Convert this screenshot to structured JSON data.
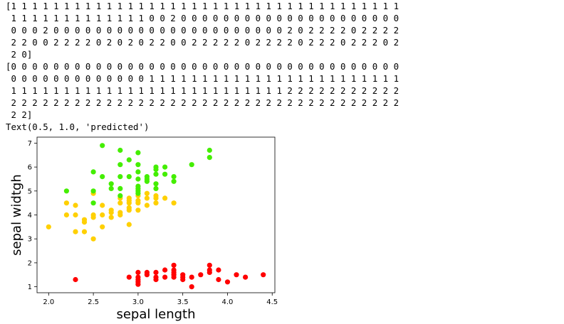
{
  "output_lines": [
    "[1 1 1 1 1 1 1 1 1 1 1 1 1 1 1 1 1 1 1 1 1 1 1 1 1 1 1 1 1 1 1 1 1 1 1 1 1",
    " 1 1 1 1 1 1 1 1 1 1 1 1 1 0 0 2 0 0 0 0 0 0 0 0 0 0 0 0 0 0 0 0 0 0 0 0 0",
    " 0 0 0 2 0 0 0 0 0 0 0 0 0 0 0 0 0 0 0 0 0 0 0 0 0 0 2 0 2 2 2 2 0 2 2 2 2",
    " 2 2 0 0 2 2 2 2 0 2 0 2 0 2 2 0 0 2 2 2 2 2 0 2 2 2 2 0 2 2 2 0 2 2 2 0 2",
    " 2 0]",
    "[0 0 0 0 0 0 0 0 0 0 0 0 0 0 0 0 0 0 0 0 0 0 0 0 0 0 0 0 0 0 0 0 0 0 0 0 0",
    " 0 0 0 0 0 0 0 0 0 0 0 0 0 1 1 1 1 1 1 1 1 1 1 1 1 1 1 1 1 1 1 1 1 1 1 1 1",
    " 1 1 1 1 1 1 1 1 1 1 1 1 1 1 1 1 1 1 1 1 1 1 1 1 1 1 2 2 2 2 2 2 2 2 2 2 2",
    " 2 2 2 2 2 2 2 2 2 2 2 2 2 2 2 2 2 2 2 2 2 2 2 2 2 2 2 2 2 2 2 2 2 2 2 2 2",
    " 2 2]",
    "Text(0.5, 1.0, 'predicted')"
  ],
  "chart_data": {
    "type": "scatter",
    "xlabel": "sepal length",
    "ylabel": "sepal widtgh",
    "xlim": [
      1.87,
      4.53
    ],
    "ylim": [
      0.75,
      7.25
    ],
    "xticks": [
      "2.0",
      "2.5",
      "3.0",
      "3.5",
      "4.0",
      "4.5"
    ],
    "xtick_values": [
      2.0,
      2.5,
      3.0,
      3.5,
      4.0,
      4.5
    ],
    "yticks": [
      "1",
      "2",
      "3",
      "4",
      "5",
      "6",
      "7"
    ],
    "ytick_values": [
      1,
      2,
      3,
      4,
      5,
      6,
      7
    ],
    "grid": false,
    "series": [
      {
        "color": "#ff0000",
        "points": [
          [
            2.3,
            1.3
          ],
          [
            2.9,
            1.4
          ],
          [
            3.0,
            1.1
          ],
          [
            3.0,
            1.2
          ],
          [
            3.0,
            1.3
          ],
          [
            3.0,
            1.4
          ],
          [
            3.0,
            1.6
          ],
          [
            3.1,
            1.5
          ],
          [
            3.1,
            1.6
          ],
          [
            3.2,
            1.3
          ],
          [
            3.2,
            1.4
          ],
          [
            3.2,
            1.6
          ],
          [
            3.3,
            1.4
          ],
          [
            3.3,
            1.7
          ],
          [
            3.4,
            1.4
          ],
          [
            3.4,
            1.5
          ],
          [
            3.4,
            1.6
          ],
          [
            3.4,
            1.7
          ],
          [
            3.4,
            1.9
          ],
          [
            3.5,
            1.3
          ],
          [
            3.5,
            1.4
          ],
          [
            3.5,
            1.5
          ],
          [
            3.6,
            1.0
          ],
          [
            3.6,
            1.4
          ],
          [
            3.7,
            1.5
          ],
          [
            3.8,
            1.6
          ],
          [
            3.8,
            1.7
          ],
          [
            3.8,
            1.9
          ],
          [
            3.9,
            1.3
          ],
          [
            3.9,
            1.7
          ],
          [
            4.0,
            1.2
          ],
          [
            4.1,
            1.5
          ],
          [
            4.2,
            1.4
          ],
          [
            4.4,
            1.5
          ]
        ]
      },
      {
        "color": "#ffd000",
        "points": [
          [
            2.0,
            3.5
          ],
          [
            2.2,
            4.0
          ],
          [
            2.2,
            4.5
          ],
          [
            2.3,
            3.3
          ],
          [
            2.3,
            4.0
          ],
          [
            2.3,
            4.4
          ],
          [
            2.4,
            3.3
          ],
          [
            2.4,
            3.7
          ],
          [
            2.4,
            3.8
          ],
          [
            2.5,
            3.0
          ],
          [
            2.5,
            3.9
          ],
          [
            2.5,
            4.0
          ],
          [
            2.5,
            4.9
          ],
          [
            2.6,
            3.5
          ],
          [
            2.6,
            4.0
          ],
          [
            2.6,
            4.4
          ],
          [
            2.7,
            3.9
          ],
          [
            2.7,
            4.1
          ],
          [
            2.7,
            4.2
          ],
          [
            2.8,
            4.0
          ],
          [
            2.8,
            4.1
          ],
          [
            2.8,
            4.5
          ],
          [
            2.8,
            4.7
          ],
          [
            2.9,
            3.6
          ],
          [
            2.9,
            4.2
          ],
          [
            2.9,
            4.3
          ],
          [
            2.9,
            4.5
          ],
          [
            2.9,
            4.6
          ],
          [
            2.9,
            4.7
          ],
          [
            3.0,
            4.2
          ],
          [
            3.0,
            4.5
          ],
          [
            3.0,
            4.6
          ],
          [
            3.0,
            4.8
          ],
          [
            3.1,
            4.4
          ],
          [
            3.1,
            4.7
          ],
          [
            3.1,
            4.9
          ],
          [
            3.2,
            4.5
          ],
          [
            3.2,
            4.7
          ],
          [
            3.2,
            4.8
          ],
          [
            3.3,
            4.7
          ],
          [
            3.4,
            4.5
          ]
        ]
      },
      {
        "color": "#44ee00",
        "points": [
          [
            2.2,
            5.0
          ],
          [
            2.5,
            4.5
          ],
          [
            2.5,
            5.0
          ],
          [
            2.5,
            5.8
          ],
          [
            2.6,
            5.6
          ],
          [
            2.6,
            6.9
          ],
          [
            2.7,
            5.1
          ],
          [
            2.7,
            5.3
          ],
          [
            2.8,
            4.8
          ],
          [
            2.8,
            5.1
          ],
          [
            2.8,
            5.6
          ],
          [
            2.8,
            6.1
          ],
          [
            2.8,
            6.7
          ],
          [
            2.9,
            5.6
          ],
          [
            2.9,
            6.3
          ],
          [
            3.0,
            4.9
          ],
          [
            3.0,
            5.0
          ],
          [
            3.0,
            5.1
          ],
          [
            3.0,
            5.2
          ],
          [
            3.0,
            5.5
          ],
          [
            3.0,
            5.8
          ],
          [
            3.0,
            6.1
          ],
          [
            3.0,
            6.6
          ],
          [
            3.1,
            5.4
          ],
          [
            3.1,
            5.5
          ],
          [
            3.1,
            5.6
          ],
          [
            3.2,
            5.1
          ],
          [
            3.2,
            5.3
          ],
          [
            3.2,
            5.7
          ],
          [
            3.2,
            5.9
          ],
          [
            3.2,
            6.0
          ],
          [
            3.3,
            5.7
          ],
          [
            3.3,
            6.0
          ],
          [
            3.4,
            5.4
          ],
          [
            3.4,
            5.6
          ],
          [
            3.6,
            6.1
          ],
          [
            3.8,
            6.4
          ],
          [
            3.8,
            6.7
          ]
        ]
      }
    ]
  }
}
